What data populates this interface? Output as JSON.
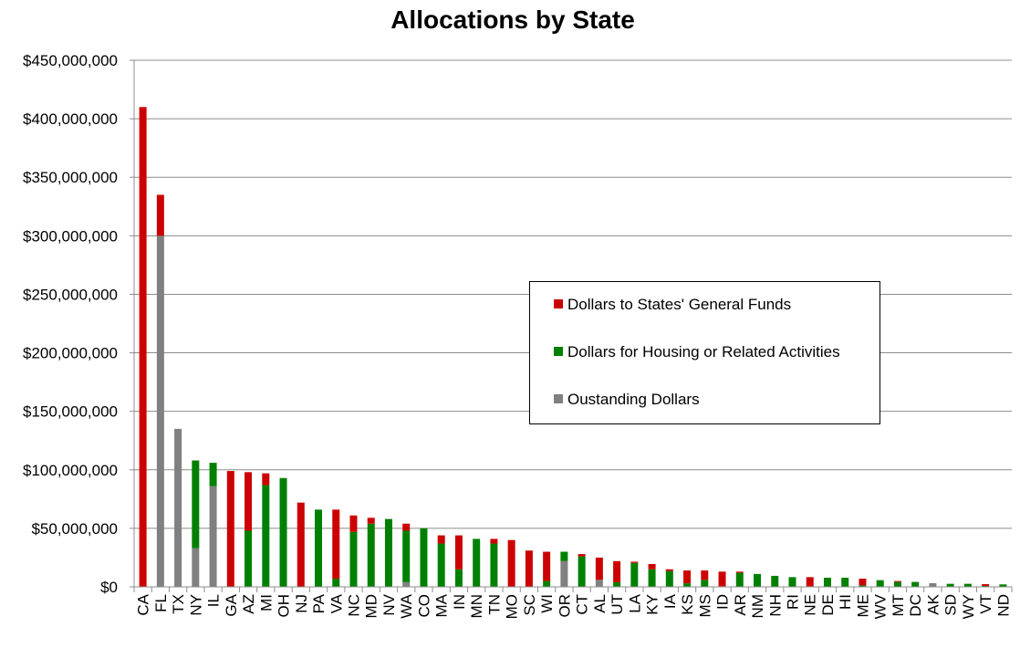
{
  "chart_data": {
    "type": "bar",
    "stacked": true,
    "title": "Allocations by State",
    "xlabel": "",
    "ylabel": "",
    "ylim": [
      0,
      450000000
    ],
    "yticks": [
      0,
      50000000,
      100000000,
      150000000,
      200000000,
      250000000,
      300000000,
      350000000,
      400000000,
      450000000
    ],
    "ytick_labels": [
      "$0",
      "$50,000,000",
      "$100,000,000",
      "$150,000,000",
      "$200,000,000",
      "$250,000,000",
      "$300,000,000",
      "$350,000,000",
      "$400,000,000",
      "$450,000,000"
    ],
    "grid": "horizontal",
    "legend_position": "center-right",
    "categories": [
      "CA",
      "FL",
      "TX",
      "NY",
      "IL",
      "GA",
      "AZ",
      "MI",
      "OH",
      "NJ",
      "PA",
      "VA",
      "NC",
      "MD",
      "NV",
      "WA",
      "CO",
      "MA",
      "IN",
      "MN",
      "TN",
      "MO",
      "SC",
      "WI",
      "OR",
      "CT",
      "AL",
      "UT",
      "LA",
      "KY",
      "IA",
      "KS",
      "MS",
      "ID",
      "AR",
      "NM",
      "NH",
      "RI",
      "NE",
      "DE",
      "HI",
      "ME",
      "WV",
      "MT",
      "DC",
      "AK",
      "SD",
      "WY",
      "VT",
      "ND"
    ],
    "series": [
      {
        "name": "Oustanding Dollars",
        "color": "#808080",
        "values": [
          0,
          300000000,
          135000000,
          33000000,
          86000000,
          0,
          0,
          0,
          0,
          0,
          0,
          0,
          0,
          0,
          0,
          4000000,
          0,
          0,
          0,
          0,
          0,
          0,
          0,
          0,
          22000000,
          0,
          6000000,
          0,
          0,
          0,
          0,
          0,
          0,
          500000,
          0,
          0,
          0,
          0,
          0,
          0,
          0,
          0,
          0,
          0,
          0,
          3100000,
          0,
          0,
          0,
          0
        ]
      },
      {
        "name": "Dollars for Housing or Related Activities",
        "color": "#008000",
        "values": [
          0,
          0,
          0,
          75000000,
          20000000,
          0,
          48000000,
          87000000,
          93000000,
          0,
          66000000,
          7000000,
          47000000,
          54000000,
          58000000,
          44000000,
          50000000,
          37000000,
          15000000,
          41000000,
          37000000,
          0,
          0,
          5000000,
          8000000,
          26000000,
          0,
          4000000,
          20500000,
          15000000,
          13500000,
          3000000,
          6000000,
          0,
          12000000,
          11000000,
          9400000,
          8300000,
          500000,
          7800000,
          7800000,
          1300000,
          5700000,
          4200000,
          4200000,
          0,
          2600000,
          2600000,
          800000,
          2100000
        ]
      },
      {
        "name": "Dollars to States' General Funds",
        "color": "#cc0000",
        "values": [
          410000000,
          35000000,
          0,
          0,
          0,
          99000000,
          50000000,
          10000000,
          0,
          72000000,
          0,
          59000000,
          14000000,
          5000000,
          0,
          6000000,
          0,
          7000000,
          29000000,
          0,
          4000000,
          40000000,
          31000000,
          25000000,
          0,
          2000000,
          19000000,
          18000000,
          1000000,
          4500000,
          1500000,
          11000000,
          8000000,
          12500000,
          1000000,
          0,
          0,
          0,
          7800000,
          0,
          0,
          5700000,
          0,
          800000,
          0,
          0,
          0,
          0,
          1500000,
          0
        ]
      }
    ],
    "legend_order": [
      "Dollars to States' General Funds",
      "Dollars for Housing or Related Activities",
      "Oustanding Dollars"
    ]
  }
}
